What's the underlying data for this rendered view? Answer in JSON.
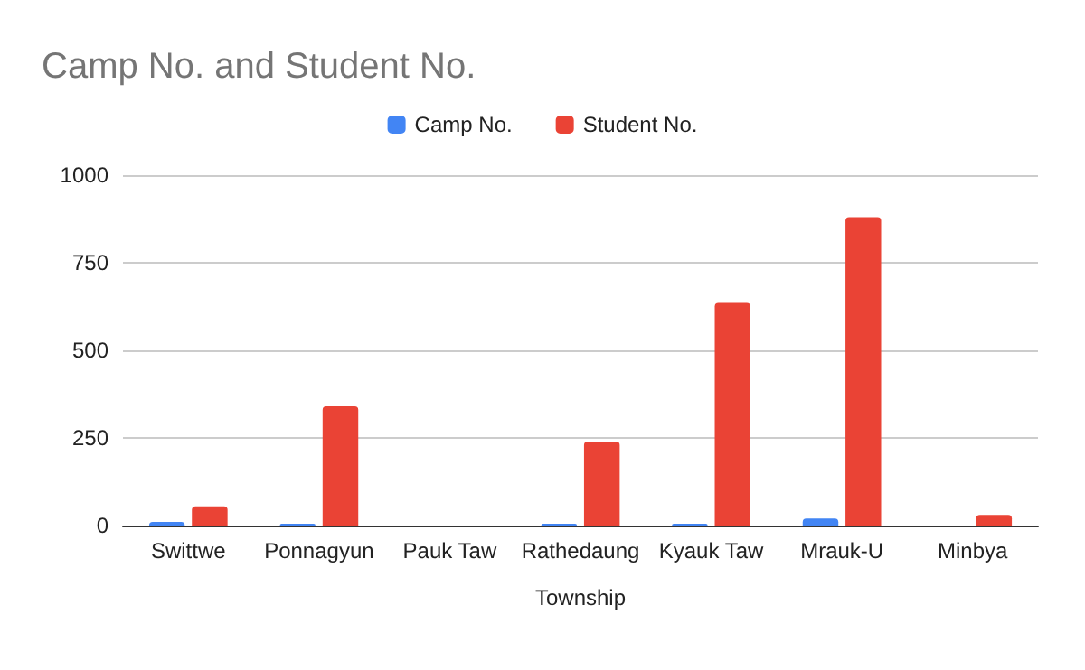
{
  "chart_data": {
    "type": "bar",
    "title": "Camp No. and Student No.",
    "xlabel": "Township",
    "categories": [
      "Swittwe",
      "Ponnagyun",
      "Pauk Taw",
      "Rathedaung",
      "Kyauk Taw",
      "Mrauk-U",
      "Minbya"
    ],
    "series": [
      {
        "name": "Camp No.",
        "color": "#4285f4",
        "values": [
          10,
          5,
          0,
          5,
          5,
          20,
          0
        ]
      },
      {
        "name": "Student No.",
        "color": "#ea4335",
        "values": [
          55,
          340,
          0,
          240,
          635,
          880,
          30
        ]
      }
    ],
    "ylim": [
      0,
      1000
    ],
    "yticks": [
      0,
      250,
      500,
      750,
      1000
    ],
    "grid": "y",
    "legend": "top"
  }
}
